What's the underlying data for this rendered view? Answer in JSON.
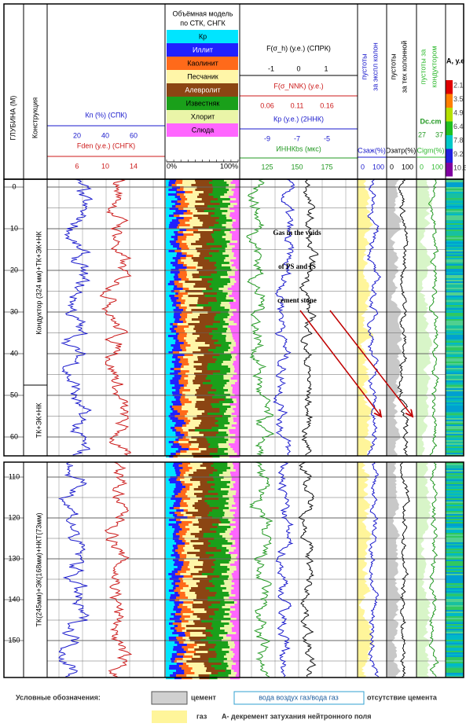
{
  "header": {
    "depth": "ГЛУБИНА (М)",
    "construction": "Конструкция"
  },
  "porosity": {
    "kp_label": "Кп (%) (СПК)",
    "kp_ticks": [
      "20",
      "40",
      "60"
    ],
    "fden_label": "Fden (у.е.) (СНГК)",
    "fden_ticks": [
      "6",
      "10",
      "14"
    ]
  },
  "lithology": {
    "title": [
      "Объёмная модель",
      "по СТК, СНГК"
    ],
    "legend": [
      {
        "label": "Кр",
        "color": "#00e5ff"
      },
      {
        "label": "Иллит",
        "color": "#2020ff"
      },
      {
        "label": "Каолинит",
        "color": "#ff6a1a"
      },
      {
        "label": "Песчаник",
        "color": "#fff6a8"
      },
      {
        "label": "Алевролит",
        "color": "#8b4513"
      },
      {
        "label": "Известняк",
        "color": "#1aa01a"
      },
      {
        "label": "Хлорит",
        "color": "#eaf5a8"
      },
      {
        "label": "Слюда",
        "color": "#ff66ff"
      }
    ],
    "scale": [
      "0%",
      "100%"
    ]
  },
  "stress": {
    "f_h": "F(σ_h) (у.е.) (СПРК)",
    "f_h_ticks": [
      "-1",
      "0",
      "1"
    ],
    "f_nnk": "F(σ_NNK) (у.е.)",
    "f_nnk_ticks": [
      "0.06",
      "0.11",
      "0.16"
    ],
    "kp": "Кр (у.е.) (2ННК)",
    "kp_ticks": [
      "-9",
      "-7",
      "-5"
    ],
    "innk": "ИННКbs (мкс)",
    "innk_ticks": [
      "125",
      "150",
      "175"
    ]
  },
  "voids_prod": {
    "title": [
      "пустоты",
      "за экспл колон"
    ],
    "unit": "Сзаж(%)",
    "ticks": [
      "0",
      "100"
    ]
  },
  "voids_tech": {
    "title": [
      "пустоты",
      "за тех колонной"
    ],
    "unit": "Dзатр(%)",
    "ticks": [
      "0",
      "100"
    ]
  },
  "voids_cond": {
    "title": [
      "пустоты за",
      "кондуктором"
    ],
    "dc": "Dc.cm",
    "dc_ticks": [
      "27",
      "37"
    ],
    "unit": "Cigm(%)",
    "ticks": [
      "0",
      "100"
    ]
  },
  "decrement": {
    "title": "A, у.е",
    "scale": [
      "2.1",
      "3.5",
      "4.9",
      "6.4",
      "7.8",
      "9.2",
      "10.6"
    ]
  },
  "depth_scale": {
    "section_1": [
      0,
      10,
      20,
      30,
      40,
      50,
      60
    ],
    "section_2": [
      110,
      120,
      130,
      140,
      150
    ]
  },
  "construction": {
    "section_1_upper": "Кондуктор (324 мм)+ТК+ЭК+НК",
    "section_1_lower": "ТК+ЭК+НК",
    "section_2": "ТК(245мм)+ЭК(168мм)+НКТ(73мм)"
  },
  "annotation": [
    "Gas in the voids",
    "of PS and IS",
    "cement stone"
  ],
  "legend": {
    "title": "Условные обозначения:",
    "cement": "цемент",
    "no_cement_types": "вода воздух газ/вода газ",
    "no_cement": "отсутствие цемента",
    "gas": "газ",
    "decrement": "А- декремент затухания нейтронного поля"
  }
}
